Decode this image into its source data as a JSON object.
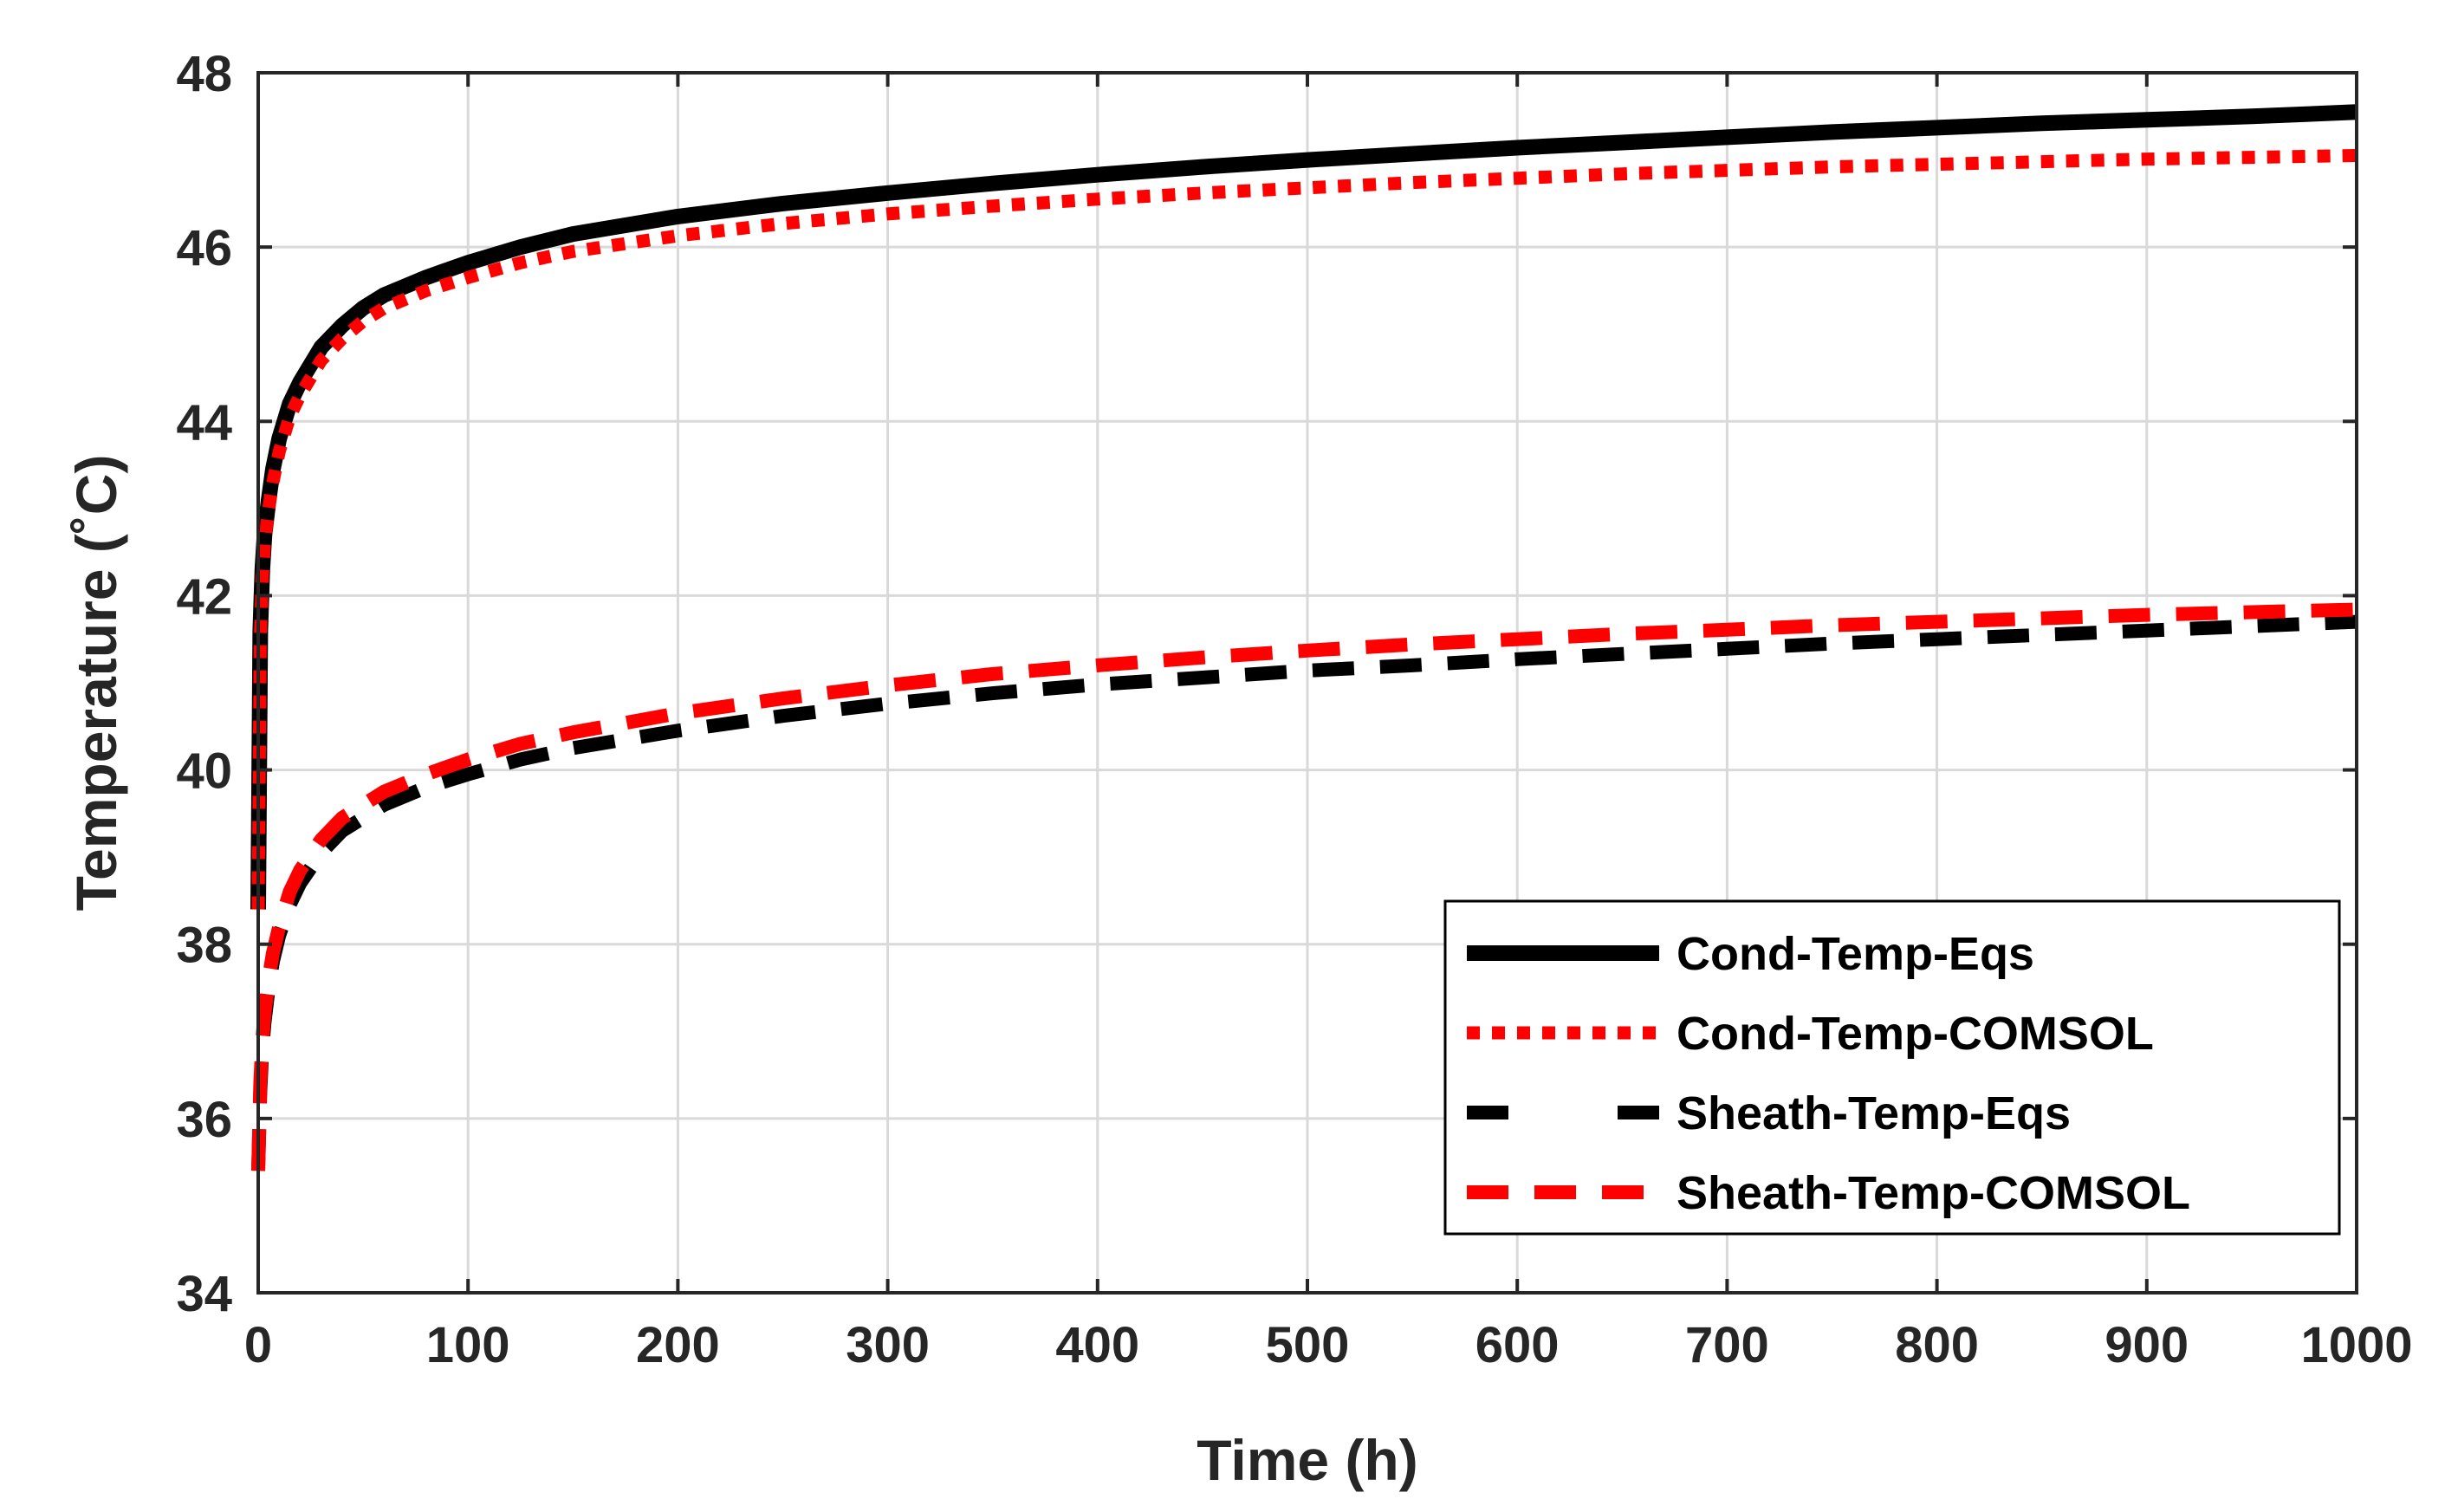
{
  "chart_data": {
    "type": "line",
    "title": "",
    "xlabel": "Time (h)",
    "ylabel": "Temperature (˚C)",
    "xlim": [
      0,
      1000
    ],
    "ylim": [
      34,
      48
    ],
    "grid": true,
    "legend_position": "bottom-right",
    "x_ticks": [
      0,
      100,
      200,
      300,
      400,
      500,
      600,
      700,
      800,
      900,
      1000
    ],
    "x_tick_labels": [
      "0",
      "100",
      "200",
      "300",
      "400",
      "500",
      "600",
      "700",
      "800",
      "900",
      "1000"
    ],
    "y_ticks": [
      34,
      36,
      38,
      40,
      42,
      44,
      46,
      48
    ],
    "y_tick_labels": [
      "34",
      "36",
      "38",
      "40",
      "42",
      "44",
      "46",
      "48"
    ],
    "x": [
      0,
      1,
      2,
      3,
      5,
      7,
      10,
      15,
      20,
      30,
      40,
      50,
      60,
      80,
      100,
      125,
      150,
      200,
      250,
      300,
      350,
      400,
      450,
      500,
      550,
      600,
      650,
      700,
      750,
      800,
      850,
      900,
      950,
      1000
    ],
    "series": [
      {
        "name": "Cond-Temp-Eqs",
        "color": "#000000",
        "style": "solid",
        "values": [
          38.4,
          41.6,
          42.3,
          42.7,
          43.1,
          43.45,
          43.8,
          44.2,
          44.45,
          44.85,
          45.1,
          45.3,
          45.45,
          45.65,
          45.82,
          46.0,
          46.15,
          46.35,
          46.5,
          46.62,
          46.73,
          46.83,
          46.92,
          47.0,
          47.07,
          47.14,
          47.2,
          47.26,
          47.32,
          47.37,
          47.42,
          47.46,
          47.5,
          47.55
        ]
      },
      {
        "name": "Cond-Temp-COMSOL",
        "color": "#ff0000",
        "style": "dotted",
        "values": [
          38.4,
          41.5,
          42.2,
          42.6,
          43.0,
          43.3,
          43.65,
          44.05,
          44.3,
          44.7,
          44.95,
          45.15,
          45.3,
          45.5,
          45.65,
          45.82,
          45.95,
          46.13,
          46.27,
          46.38,
          46.47,
          46.55,
          46.62,
          46.68,
          46.74,
          46.79,
          46.84,
          46.88,
          46.92,
          46.95,
          46.98,
          47.01,
          47.03,
          47.05
        ]
      },
      {
        "name": "Sheath-Temp-Eqs",
        "color": "#000000",
        "style": "dashed",
        "values": [
          35.4,
          36.3,
          36.8,
          37.1,
          37.5,
          37.8,
          38.1,
          38.45,
          38.7,
          39.05,
          39.3,
          39.45,
          39.6,
          39.8,
          39.95,
          40.12,
          40.25,
          40.45,
          40.62,
          40.76,
          40.88,
          40.98,
          41.06,
          41.14,
          41.2,
          41.27,
          41.33,
          41.39,
          41.45,
          41.5,
          41.55,
          41.6,
          41.65,
          41.7
        ]
      },
      {
        "name": "Sheath-Temp-COMSOL",
        "color": "#ff0000",
        "style": "dashed",
        "values": [
          35.4,
          36.4,
          36.9,
          37.2,
          37.6,
          37.9,
          38.2,
          38.6,
          38.85,
          39.2,
          39.45,
          39.6,
          39.75,
          39.95,
          40.12,
          40.3,
          40.43,
          40.65,
          40.82,
          40.97,
          41.1,
          41.2,
          41.29,
          41.37,
          41.44,
          41.5,
          41.56,
          41.61,
          41.66,
          41.7,
          41.74,
          41.78,
          41.81,
          41.84
        ]
      }
    ]
  }
}
